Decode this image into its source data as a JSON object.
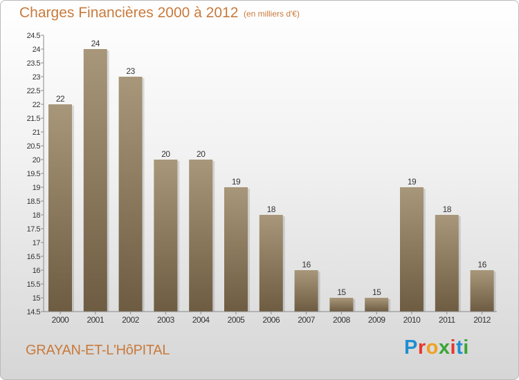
{
  "header": {
    "title": "Charges Financières 2000 à 2012",
    "subtitle": "(en milliers d'€)"
  },
  "footer": {
    "commune": "GRAYAN-ET-L'HôPITAL",
    "logo_letters": [
      "P",
      "r",
      "o",
      "x",
      "i",
      "t",
      "i"
    ],
    "logo_colors": [
      "#1f8fd1",
      "#e8362d",
      "#f0a020",
      "#3aa535",
      "#e8362d",
      "#1f8fd1",
      "#3aa535"
    ]
  },
  "chart_data": {
    "type": "bar",
    "title": "Charges Financières 2000 à 2012",
    "subtitle": "(en milliers d'€)",
    "categories": [
      "2000",
      "2001",
      "2002",
      "2003",
      "2004",
      "2005",
      "2006",
      "2007",
      "2008",
      "2009",
      "2010",
      "2011",
      "2012"
    ],
    "values": [
      22,
      24,
      23,
      20,
      20,
      19,
      18,
      16,
      15,
      15,
      19,
      18,
      16
    ],
    "data_labels": [
      "22",
      "24",
      "23",
      "20",
      "20",
      "19",
      "18",
      "16",
      "15",
      "15",
      "19",
      "18",
      "16"
    ],
    "ylim": [
      14.5,
      24.5
    ],
    "yticks": [
      "14.5",
      "15",
      "15.5",
      "16",
      "16.5",
      "17",
      "17.5",
      "18",
      "18.5",
      "19",
      "19.5",
      "20",
      "20.5",
      "21",
      "21.5",
      "22",
      "22.5",
      "23",
      "23.5",
      "24",
      "24.5"
    ],
    "grid": false,
    "bar_color_top": "#a8977a",
    "bar_color_bottom": "#6e5c42"
  }
}
